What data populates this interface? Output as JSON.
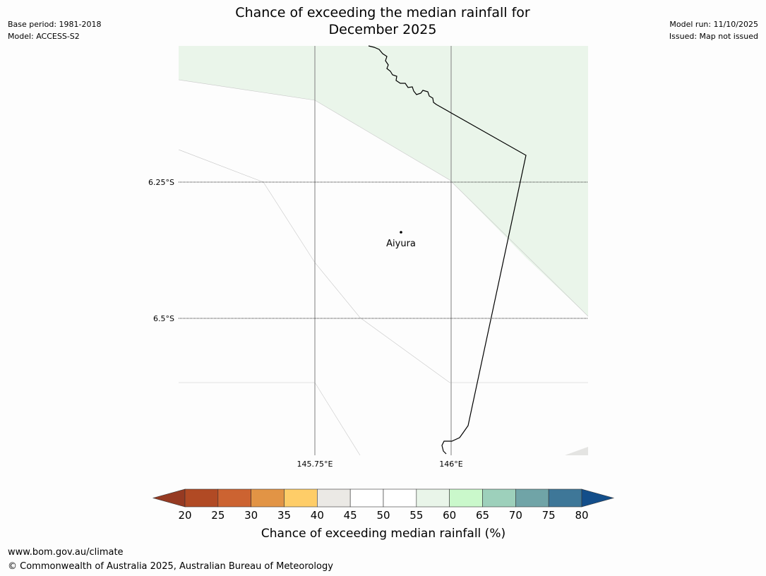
{
  "header": {
    "title_line1": "Chance of exceeding the median rainfall for",
    "title_line2": "December 2025",
    "base_period": "Base period: 1981-2018",
    "model": "Model: ACCESS-S2",
    "model_run": "Model run: 11/10/2025",
    "issued": "Issued: Map not issued"
  },
  "map": {
    "lat_labels": [
      "6.25°S",
      "6.5°S"
    ],
    "lon_labels": [
      "145.75°E",
      "146°E"
    ],
    "place_name": "Aiyura",
    "shading_color": "#eaf5ea"
  },
  "colorbar": {
    "title": "Chance of exceeding median rainfall (%)",
    "ticks": [
      "20",
      "25",
      "30",
      "35",
      "40",
      "45",
      "50",
      "55",
      "60",
      "65",
      "70",
      "75",
      "80"
    ],
    "under_color": "#963a22",
    "over_color": "#134e8a",
    "colors": [
      "#b14a24",
      "#cc6331",
      "#e29445",
      "#fecd68",
      "#ebe9e5",
      "#ffffff",
      "#ffffff",
      "#e9f5e9",
      "#caf8cb",
      "#9dd0bb",
      "#70a4a7",
      "#3e7798"
    ]
  },
  "footer": {
    "url": "www.bom.gov.au/climate",
    "copyright": "© Commonwealth of Australia 2025, Australian Bureau of Meteorology"
  }
}
